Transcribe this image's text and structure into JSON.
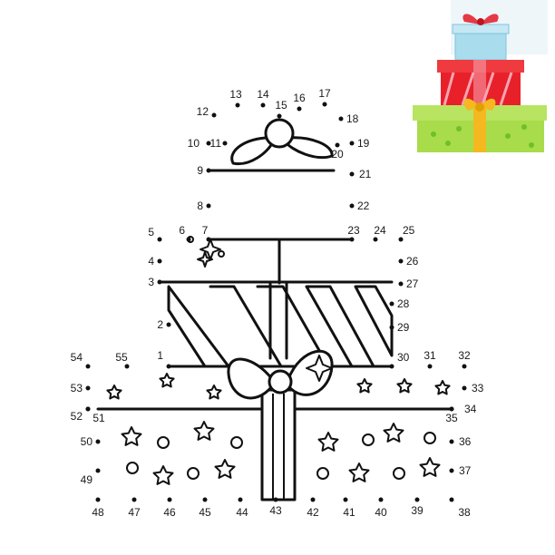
{
  "puzzle": {
    "title": "",
    "dots": [
      {
        "n": "1"
      },
      {
        "n": "2"
      },
      {
        "n": "3"
      },
      {
        "n": "4"
      },
      {
        "n": "5"
      },
      {
        "n": "6"
      },
      {
        "n": "7"
      },
      {
        "n": "8"
      },
      {
        "n": "9"
      },
      {
        "n": "10"
      },
      {
        "n": "11"
      },
      {
        "n": "12"
      },
      {
        "n": "13"
      },
      {
        "n": "14"
      },
      {
        "n": "15"
      },
      {
        "n": "16"
      },
      {
        "n": "17"
      },
      {
        "n": "18"
      },
      {
        "n": "19"
      },
      {
        "n": "20"
      },
      {
        "n": "21"
      },
      {
        "n": "22"
      },
      {
        "n": "23"
      },
      {
        "n": "24"
      },
      {
        "n": "25"
      },
      {
        "n": "26"
      },
      {
        "n": "27"
      },
      {
        "n": "28"
      },
      {
        "n": "29"
      },
      {
        "n": "30"
      },
      {
        "n": "31"
      },
      {
        "n": "32"
      },
      {
        "n": "33"
      },
      {
        "n": "34"
      },
      {
        "n": "35"
      },
      {
        "n": "36"
      },
      {
        "n": "37"
      },
      {
        "n": "38"
      },
      {
        "n": "39"
      },
      {
        "n": "40"
      },
      {
        "n": "41"
      },
      {
        "n": "42"
      },
      {
        "n": "43"
      },
      {
        "n": "44"
      },
      {
        "n": "45"
      },
      {
        "n": "46"
      },
      {
        "n": "47"
      },
      {
        "n": "48"
      },
      {
        "n": "49"
      },
      {
        "n": "50"
      },
      {
        "n": "51"
      },
      {
        "n": "52"
      },
      {
        "n": "53"
      },
      {
        "n": "54"
      },
      {
        "n": "55"
      }
    ]
  },
  "reference_image": {
    "colors": {
      "top_box": "#a9dced",
      "top_bow": "#e63946",
      "middle_box": "#e8202a",
      "middle_ribbon": "#f6a5b0",
      "bottom_box": "#a8dc4a",
      "bottom_bow": "#f5b820"
    }
  },
  "colors": {
    "line": "#111111",
    "background": "#ffffff"
  }
}
